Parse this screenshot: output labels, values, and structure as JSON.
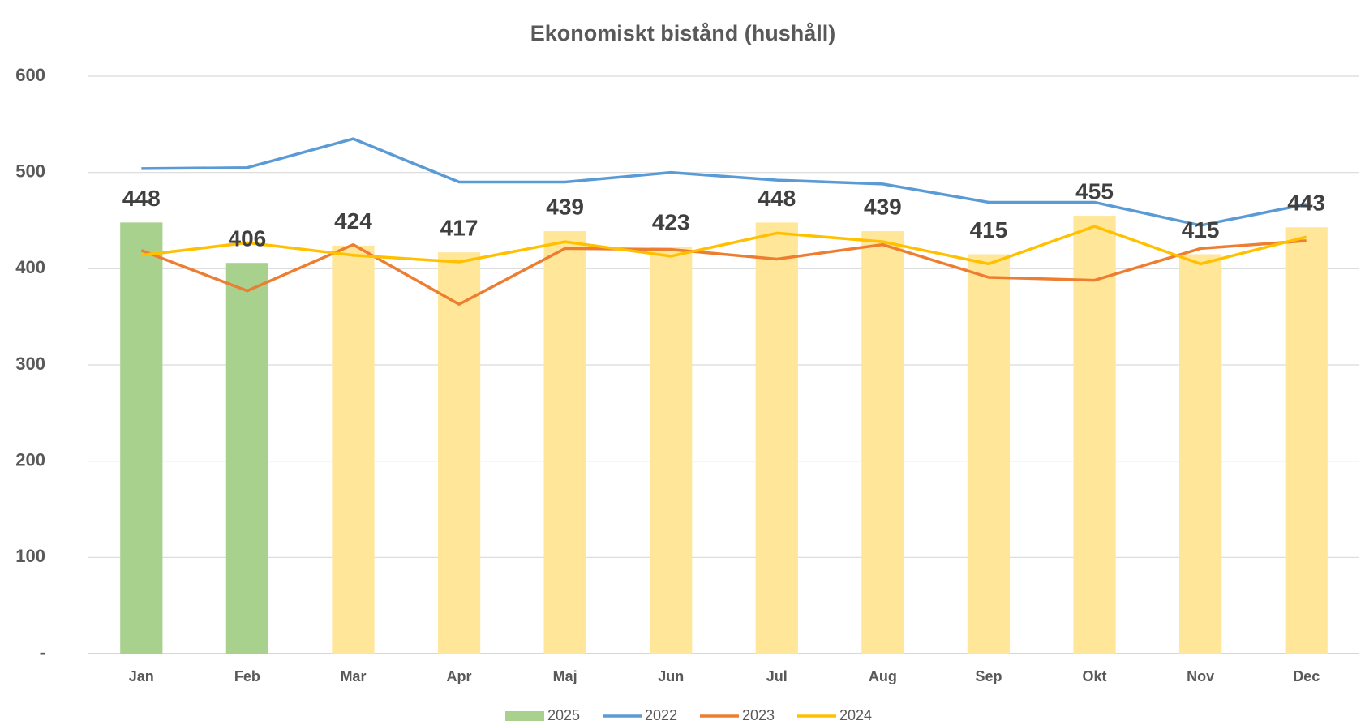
{
  "chart_data": {
    "type": "combo",
    "title": "Ekonomiskt bistånd (hushåll)",
    "categories": [
      "Jan",
      "Feb",
      "Mar",
      "Apr",
      "Maj",
      "Jun",
      "Jul",
      "Aug",
      "Sep",
      "Okt",
      "Nov",
      "Dec"
    ],
    "series": [
      {
        "name": "2025",
        "type": "bar",
        "color": "#a9d18e",
        "colors": [
          "#a9d18e",
          "#a9d18e",
          "#ffe699",
          "#ffe699",
          "#ffe699",
          "#ffe699",
          "#ffe699",
          "#ffe699",
          "#ffe699",
          "#ffe699",
          "#ffe699",
          "#ffe699"
        ],
        "values": [
          448,
          406,
          424,
          417,
          439,
          423,
          448,
          439,
          415,
          455,
          415,
          443
        ]
      },
      {
        "name": "2022",
        "type": "line",
        "color": "#5b9bd5",
        "values": [
          504,
          505,
          535,
          490,
          490,
          500,
          492,
          488,
          469,
          469,
          445,
          467
        ]
      },
      {
        "name": "2023",
        "type": "line",
        "color": "#ed7d31",
        "values": [
          419,
          377,
          425,
          363,
          421,
          420,
          410,
          425,
          391,
          388,
          421,
          429
        ]
      },
      {
        "name": "2024",
        "type": "line",
        "color": "#ffc000",
        "values": [
          414,
          427,
          414,
          407,
          428,
          413,
          437,
          428,
          405,
          444,
          405,
          433
        ]
      }
    ],
    "ylim": [
      0,
      600
    ],
    "yticks": [
      {
        "value": 0,
        "label": "-"
      },
      100,
      200,
      300,
      400,
      500,
      600
    ],
    "grid": true,
    "legend": "bottom"
  }
}
